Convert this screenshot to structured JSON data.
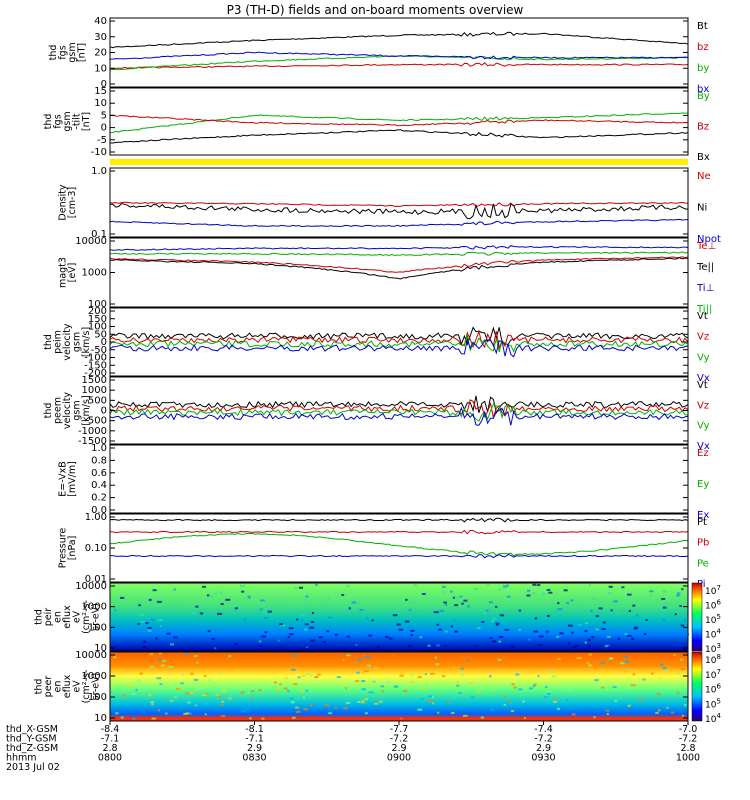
{
  "title": "P3 (TH-D) fields and on-board moments overview",
  "panels": [
    {
      "id": "fgs-gsm",
      "ylabel": [
        "thd",
        "fgs",
        "gsm",
        "[nT]"
      ],
      "ticks": [
        "40",
        "30",
        "20",
        "10",
        "0"
      ],
      "legend": [
        {
          "label": "Bt",
          "color": "#000000"
        },
        {
          "label": "bz",
          "color": "#cc0000"
        },
        {
          "label": "by",
          "color": "#00b000"
        },
        {
          "label": "bx",
          "color": "#0000cc"
        }
      ]
    },
    {
      "id": "fgs-dsl",
      "ylabel": [
        "thd",
        "fgs",
        "gsm",
        "-tilt",
        "[nT]"
      ],
      "ticks": [
        "15",
        "10",
        "5",
        "0",
        "-5",
        "-10"
      ],
      "legend": [
        {
          "label": "By",
          "color": "#00b000"
        },
        {
          "label": "Bz",
          "color": "#cc0000"
        },
        {
          "label": "Bx",
          "color": "#000000"
        }
      ]
    },
    {
      "id": "density",
      "ylabel": [
        "Density",
        "[cm-3]"
      ],
      "ticks": [
        "1.0",
        "0.1"
      ],
      "legend": [
        {
          "label": "Ne",
          "color": "#cc0000"
        },
        {
          "label": "Ni",
          "color": "#000000"
        },
        {
          "label": "Npot",
          "color": "#0000cc"
        }
      ]
    },
    {
      "id": "temperature",
      "ylabel": [
        "magt3",
        "[eV]"
      ],
      "ticks": [
        "10000",
        "1000",
        "100"
      ],
      "legend": [
        {
          "label": "Te⊥",
          "color": "#cc0000"
        },
        {
          "label": "Te||",
          "color": "#000000"
        },
        {
          "label": "Ti⊥",
          "color": "#0000cc"
        },
        {
          "label": "Ti||",
          "color": "#00b000"
        }
      ]
    },
    {
      "id": "ion-velocity",
      "ylabel": [
        "thd",
        "peim",
        "velocity",
        "gsm",
        "[km/s]"
      ],
      "ticks": [
        "200",
        "150",
        "100",
        "50",
        "0",
        "-50",
        "-100",
        "-150",
        "-200"
      ],
      "legend": [
        {
          "label": "Vt",
          "color": "#000000"
        },
        {
          "label": "Vz",
          "color": "#cc0000"
        },
        {
          "label": "Vy",
          "color": "#00b000"
        },
        {
          "label": "Vx",
          "color": "#0000cc"
        }
      ]
    },
    {
      "id": "electron-velocity",
      "ylabel": [
        "thd",
        "peem",
        "velocity",
        "gsm",
        "[km/s]"
      ],
      "ticks": [
        "1500",
        "1000",
        "500",
        "0",
        "-500",
        "-1000",
        "-1500"
      ],
      "legend": [
        {
          "label": "Vt",
          "color": "#000000"
        },
        {
          "label": "Vz",
          "color": "#cc0000"
        },
        {
          "label": "Vy",
          "color": "#00b000"
        },
        {
          "label": "Vx",
          "color": "#0000cc"
        }
      ]
    },
    {
      "id": "efield",
      "ylabel": [
        "E=-VxB",
        "[mV/m]"
      ],
      "ticks": [
        "1.0",
        "0.8",
        "0.6",
        "0.4",
        "0.2",
        "0.0"
      ],
      "legend": [
        {
          "label": "Ez",
          "color": "#cc0000"
        },
        {
          "label": "Ey",
          "color": "#00b000"
        },
        {
          "label": "Ex",
          "color": "#0000cc"
        }
      ]
    },
    {
      "id": "pressure",
      "ylabel": [
        "Pressure",
        "[nPa]"
      ],
      "ticks": [
        "1.00",
        "0.10",
        "0.01"
      ],
      "legend": [
        {
          "label": "Pt",
          "color": "#000000"
        },
        {
          "label": "Pb",
          "color": "#cc0000"
        },
        {
          "label": "Pe",
          "color": "#00b000"
        },
        {
          "label": "Pi",
          "color": "#0000cc"
        }
      ]
    },
    {
      "id": "ion-spec",
      "ylabel": [
        "thd",
        "peir",
        "en",
        "eflux",
        "eV",
        "(cm²-s-",
        "sr-eV)"
      ],
      "ticks": [
        "10000",
        "1000",
        "100",
        "10"
      ],
      "colorbar": [
        "10",
        "10",
        "10",
        "10",
        "10"
      ],
      "colorbar_exp": [
        "7",
        "6",
        "5",
        "4",
        "3"
      ]
    },
    {
      "id": "electron-spec",
      "ylabel": [
        "thd",
        "peer",
        "en",
        "eflux",
        "eV",
        "(cm²-s-",
        "sr-eV)"
      ],
      "ticks": [
        "10000",
        "1000",
        "100",
        "10"
      ],
      "colorbar": [
        "10",
        "10",
        "10",
        "10",
        "10"
      ],
      "colorbar_exp": [
        "8",
        "7",
        "6",
        "5",
        "4"
      ]
    }
  ],
  "xaxis": {
    "row_labels": [
      "thd_X-GSM",
      "thd_Y-GSM",
      "thd_Z-GSM",
      "hhmm",
      "2013 Jul 02"
    ],
    "columns": [
      {
        "values": [
          "-8.4",
          "-7.1",
          "2.8",
          "0800"
        ]
      },
      {
        "values": [
          "-8.1",
          "-7.1",
          "2.9",
          "0830"
        ]
      },
      {
        "values": [
          "-7.7",
          "-7.2",
          "2.9",
          "0900"
        ]
      },
      {
        "values": [
          "-7.4",
          "-7.2",
          "2.9",
          "0930"
        ]
      },
      {
        "values": [
          "-7.0",
          "-7.2",
          "2.8",
          "1000"
        ]
      }
    ]
  },
  "chart_data": {
    "type": "line",
    "title": "P3 (TH-D) fields and on-board moments overview",
    "x": [
      "0800",
      "0830",
      "0900",
      "0930",
      "1000"
    ],
    "panels": [
      {
        "name": "thd fgs gsm [nT]",
        "ylim": [
          0,
          40
        ],
        "series": [
          {
            "name": "Bt",
            "values": [
              23,
              27,
              30,
              31,
              25
            ]
          },
          {
            "name": "bz",
            "values": [
              11,
              12,
              13,
              13,
              13
            ]
          },
          {
            "name": "by",
            "values": [
              10,
              15,
              18,
              16,
              17
            ]
          },
          {
            "name": "bx",
            "values": [
              16,
              20,
              18,
              17,
              17
            ]
          }
        ]
      },
      {
        "name": "thd fgs gsm-tilt [nT]",
        "ylim": [
          -12,
          15
        ],
        "series": [
          {
            "name": "By",
            "values": [
              -3,
              4,
              2,
              3,
              5
            ]
          },
          {
            "name": "Bz",
            "values": [
              4,
              1,
              0,
              2,
              1
            ]
          },
          {
            "name": "Bx",
            "values": [
              -7,
              -4,
              -2,
              -5,
              -3
            ]
          }
        ]
      },
      {
        "name": "Density [cm-3]",
        "log": true,
        "ylim": [
          0.08,
          1.0
        ],
        "series": [
          {
            "name": "Ne",
            "values": [
              0.28,
              0.27,
              0.25,
              0.27,
              0.28
            ]
          },
          {
            "name": "Ni",
            "values": [
              0.26,
              0.22,
              0.2,
              0.21,
              0.24
            ]
          },
          {
            "name": "Npot",
            "values": [
              0.14,
              0.12,
              0.12,
              0.14,
              0.15
            ]
          }
        ]
      },
      {
        "name": "magt3 [eV]",
        "log": true,
        "ylim": [
          100,
          10000
        ],
        "series": [
          {
            "name": "Te⊥",
            "values": [
              2500,
              2000,
              1000,
              2300,
              2800
            ]
          },
          {
            "name": "Te||",
            "values": [
              2300,
              1800,
              650,
              2000,
              2600
            ]
          },
          {
            "name": "Ti⊥",
            "values": [
              4500,
              5000,
              5000,
              5500,
              5300
            ]
          },
          {
            "name": "Ti||",
            "values": [
              3500,
              3500,
              3200,
              3700,
              3800
            ]
          }
        ]
      }
    ]
  }
}
